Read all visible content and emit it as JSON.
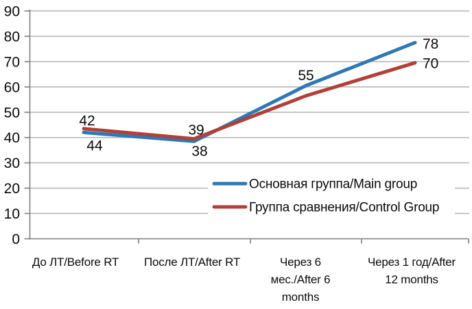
{
  "figure": {
    "background": "#ffffff",
    "text_color": "#0a0a0a",
    "gridline_color": "#b3b3b3",
    "axis_color": "#7f7f7f"
  },
  "chart_data": {
    "type": "line",
    "title": "",
    "grid": "horizontal",
    "legend_position": "inside-lower-right",
    "y_axis": {
      "min": 0,
      "max": 90,
      "step": 10,
      "tick_labels": [
        "90",
        "80",
        "70",
        "60",
        "50",
        "40",
        "30",
        "20",
        "10",
        "0"
      ]
    },
    "x_axis": {
      "categories": [
        "До ЛТ/Before RT",
        "После ЛТ/After RT",
        "Через 6 мес./After 6 months",
        "Через 1 год/After 12 months"
      ],
      "category_display_lines": [
        [
          "До ЛТ/Before RT"
        ],
        [
          "После ЛТ/After RT"
        ],
        [
          "Через 6",
          "мес./After 6",
          "months"
        ],
        [
          "Через 1 год/After",
          "12 months"
        ]
      ]
    },
    "series": [
      {
        "name": "Основная группа/Main group",
        "color": "#2E78B6",
        "values": [
          44,
          38,
          55,
          78
        ],
        "point_labels": [
          "44",
          "38",
          "55",
          "78"
        ],
        "label_positions": [
          "below",
          "below",
          "above",
          "right"
        ],
        "drawn_values": [
          42,
          38.5,
          60.5,
          77.5
        ]
      },
      {
        "name": "Группа сравнения/Control Group",
        "color": "#B04038",
        "values": [
          42,
          39,
          null,
          70
        ],
        "point_labels": [
          "42",
          "39",
          "",
          "70"
        ],
        "label_positions": [
          "above",
          "above",
          "",
          "right"
        ],
        "drawn_values": [
          43.5,
          39.5,
          56.5,
          69.5
        ]
      }
    ]
  }
}
